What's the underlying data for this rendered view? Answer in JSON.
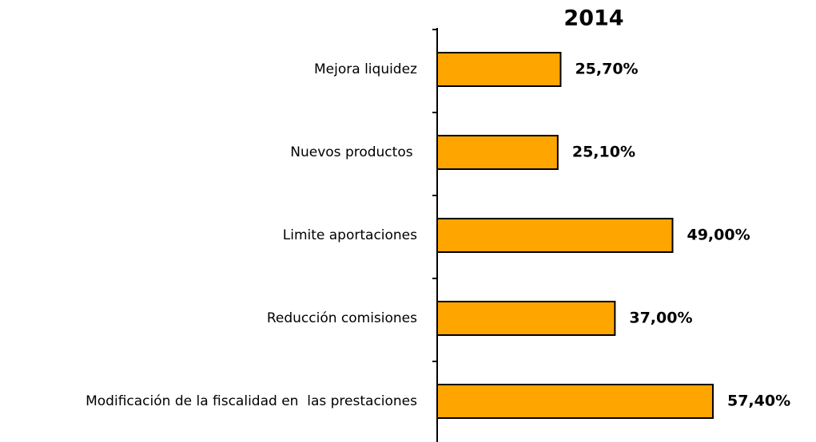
{
  "chart_data": {
    "type": "bar",
    "orientation": "horizontal",
    "title": "2014",
    "categories": [
      "Mejora liquidez",
      "Nuevos productos ",
      "Limite aportaciones",
      "Reducción comisiones",
      "Modificación de la fiscalidad en  las prestaciones"
    ],
    "values": [
      25.7,
      25.1,
      49.0,
      37.0,
      57.4
    ],
    "value_labels": [
      "25,70%",
      "25,10%",
      "49,00%",
      "37,00%",
      "57,40%"
    ],
    "color": "#ffa500"
  }
}
